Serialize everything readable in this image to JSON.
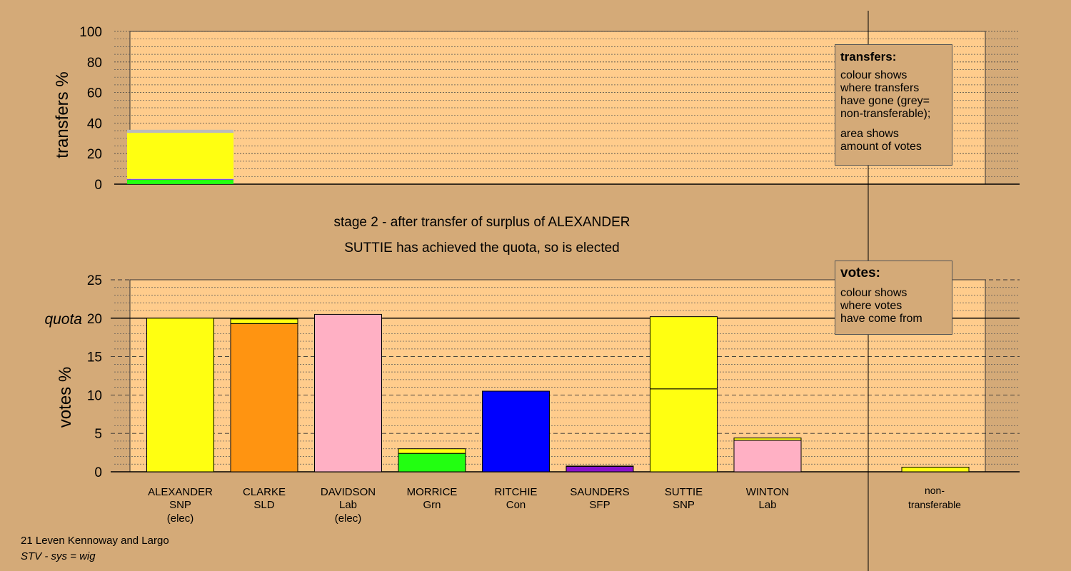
{
  "stage_line": "stage 2 - after transfer of surplus of ALEXANDER",
  "status_line": "SUTTIE has achieved the quota, so is elected",
  "legend_transfers": {
    "title": "transfers:",
    "lines": [
      "colour shows",
      "where transfers",
      "have gone (grey=",
      "non-transferable);"
    ],
    "lines2": [
      "area shows",
      "amount of votes"
    ]
  },
  "legend_votes": {
    "title": "votes:",
    "lines": [
      "colour shows",
      "where votes",
      "have come from"
    ]
  },
  "footer": {
    "area": "21 Leven Kennoway and Largo",
    "system": "STV - sys = wig"
  },
  "colors": {
    "background": "#d4aa78",
    "plot_bg": "#ffcc8c",
    "SNP": "#ffff11",
    "SLD": "#ff9411",
    "Lab": "#ffb0c4",
    "Grn": "#22ff11",
    "Con": "#0000ff",
    "SFP": "#8811cc",
    "nontransferable": "#bbbbbb"
  },
  "chart_data": [
    {
      "type": "bar",
      "name": "transfers",
      "ylabel": "transfers %",
      "ylim": [
        0,
        100
      ],
      "yticks": [
        0,
        20,
        40,
        60,
        80,
        100
      ],
      "transfer_stack": [
        {
          "party": "Grn",
          "value": 2.8
        },
        {
          "party": "Con",
          "value": 0.3
        },
        {
          "party": "Lab",
          "value": 0.5
        },
        {
          "party": "SNP",
          "value": 30.0
        },
        {
          "party": "nontransferable",
          "value": 2.0
        }
      ]
    },
    {
      "type": "bar",
      "name": "votes",
      "ylabel": "votes %",
      "ylim": [
        0,
        25
      ],
      "yticks": [
        0,
        5,
        10,
        15,
        20,
        25
      ],
      "quota": 20.0,
      "quota_label": "quota",
      "categories": [
        {
          "name": "ALEXANDER",
          "party": "SNP",
          "status": "(elec)",
          "segments": [
            {
              "party": "SNP",
              "value": 20.0
            }
          ]
        },
        {
          "name": "CLARKE",
          "party": "SLD",
          "status": "",
          "segments": [
            {
              "party": "SLD",
              "value": 19.3
            },
            {
              "party": "SNP",
              "value": 0.6
            }
          ]
        },
        {
          "name": "DAVIDSON",
          "party": "Lab",
          "status": "(elec)",
          "segments": [
            {
              "party": "Lab",
              "value": 20.5
            }
          ]
        },
        {
          "name": "MORRICE",
          "party": "Grn",
          "status": "",
          "segments": [
            {
              "party": "Grn",
              "value": 2.4
            },
            {
              "party": "SNP",
              "value": 0.6
            }
          ]
        },
        {
          "name": "RITCHIE",
          "party": "Con",
          "status": "",
          "segments": [
            {
              "party": "Con",
              "value": 10.5
            }
          ]
        },
        {
          "name": "SAUNDERS",
          "party": "SFP",
          "status": "",
          "segments": [
            {
              "party": "SFP",
              "value": 0.7
            },
            {
              "party": "SNP",
              "value": 0.05
            }
          ]
        },
        {
          "name": "SUTTIE",
          "party": "SNP",
          "status": "",
          "segments": [
            {
              "party": "SNP",
              "value": 10.8
            },
            {
              "party": "SNP",
              "value": 9.4
            }
          ]
        },
        {
          "name": "WINTON",
          "party": "Lab",
          "status": "",
          "segments": [
            {
              "party": "Lab",
              "value": 4.1
            },
            {
              "party": "SNP",
              "value": 0.3
            }
          ]
        }
      ],
      "nontransferable": {
        "label_line1": "non-",
        "label_line2": "transferable",
        "value": 0.6,
        "party": "SNP"
      }
    }
  ]
}
